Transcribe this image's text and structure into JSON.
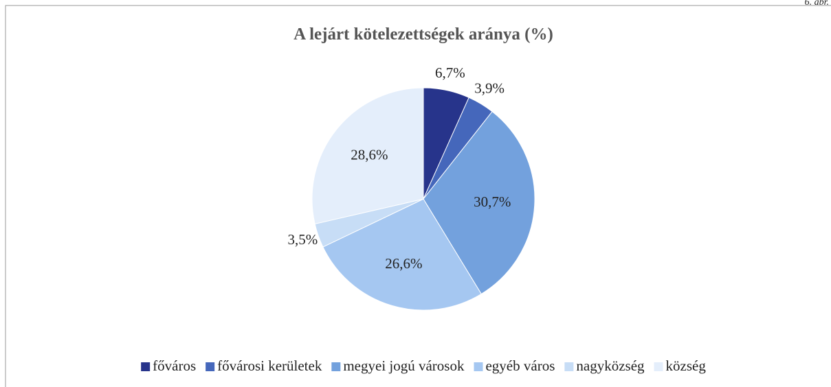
{
  "note": "6. ábr.",
  "chart_data": {
    "type": "pie",
    "title": "A lejárt kötelezettségek aránya (%)",
    "categories": [
      "főváros",
      "fővárosi kerületek",
      "megyei jogú városok",
      "egyéb város",
      "nagyközség",
      "község"
    ],
    "values": [
      6.7,
      3.9,
      30.7,
      26.6,
      3.5,
      28.6
    ],
    "value_labels": [
      "6,7%",
      "3,9%",
      "30,7%",
      "26,6%",
      "3,5%",
      "28,6%"
    ],
    "colors": [
      "#27348b",
      "#4567bb",
      "#73a1dd",
      "#a5c7f1",
      "#c7ddf6",
      "#e4eefb"
    ],
    "legend": "bottom"
  }
}
